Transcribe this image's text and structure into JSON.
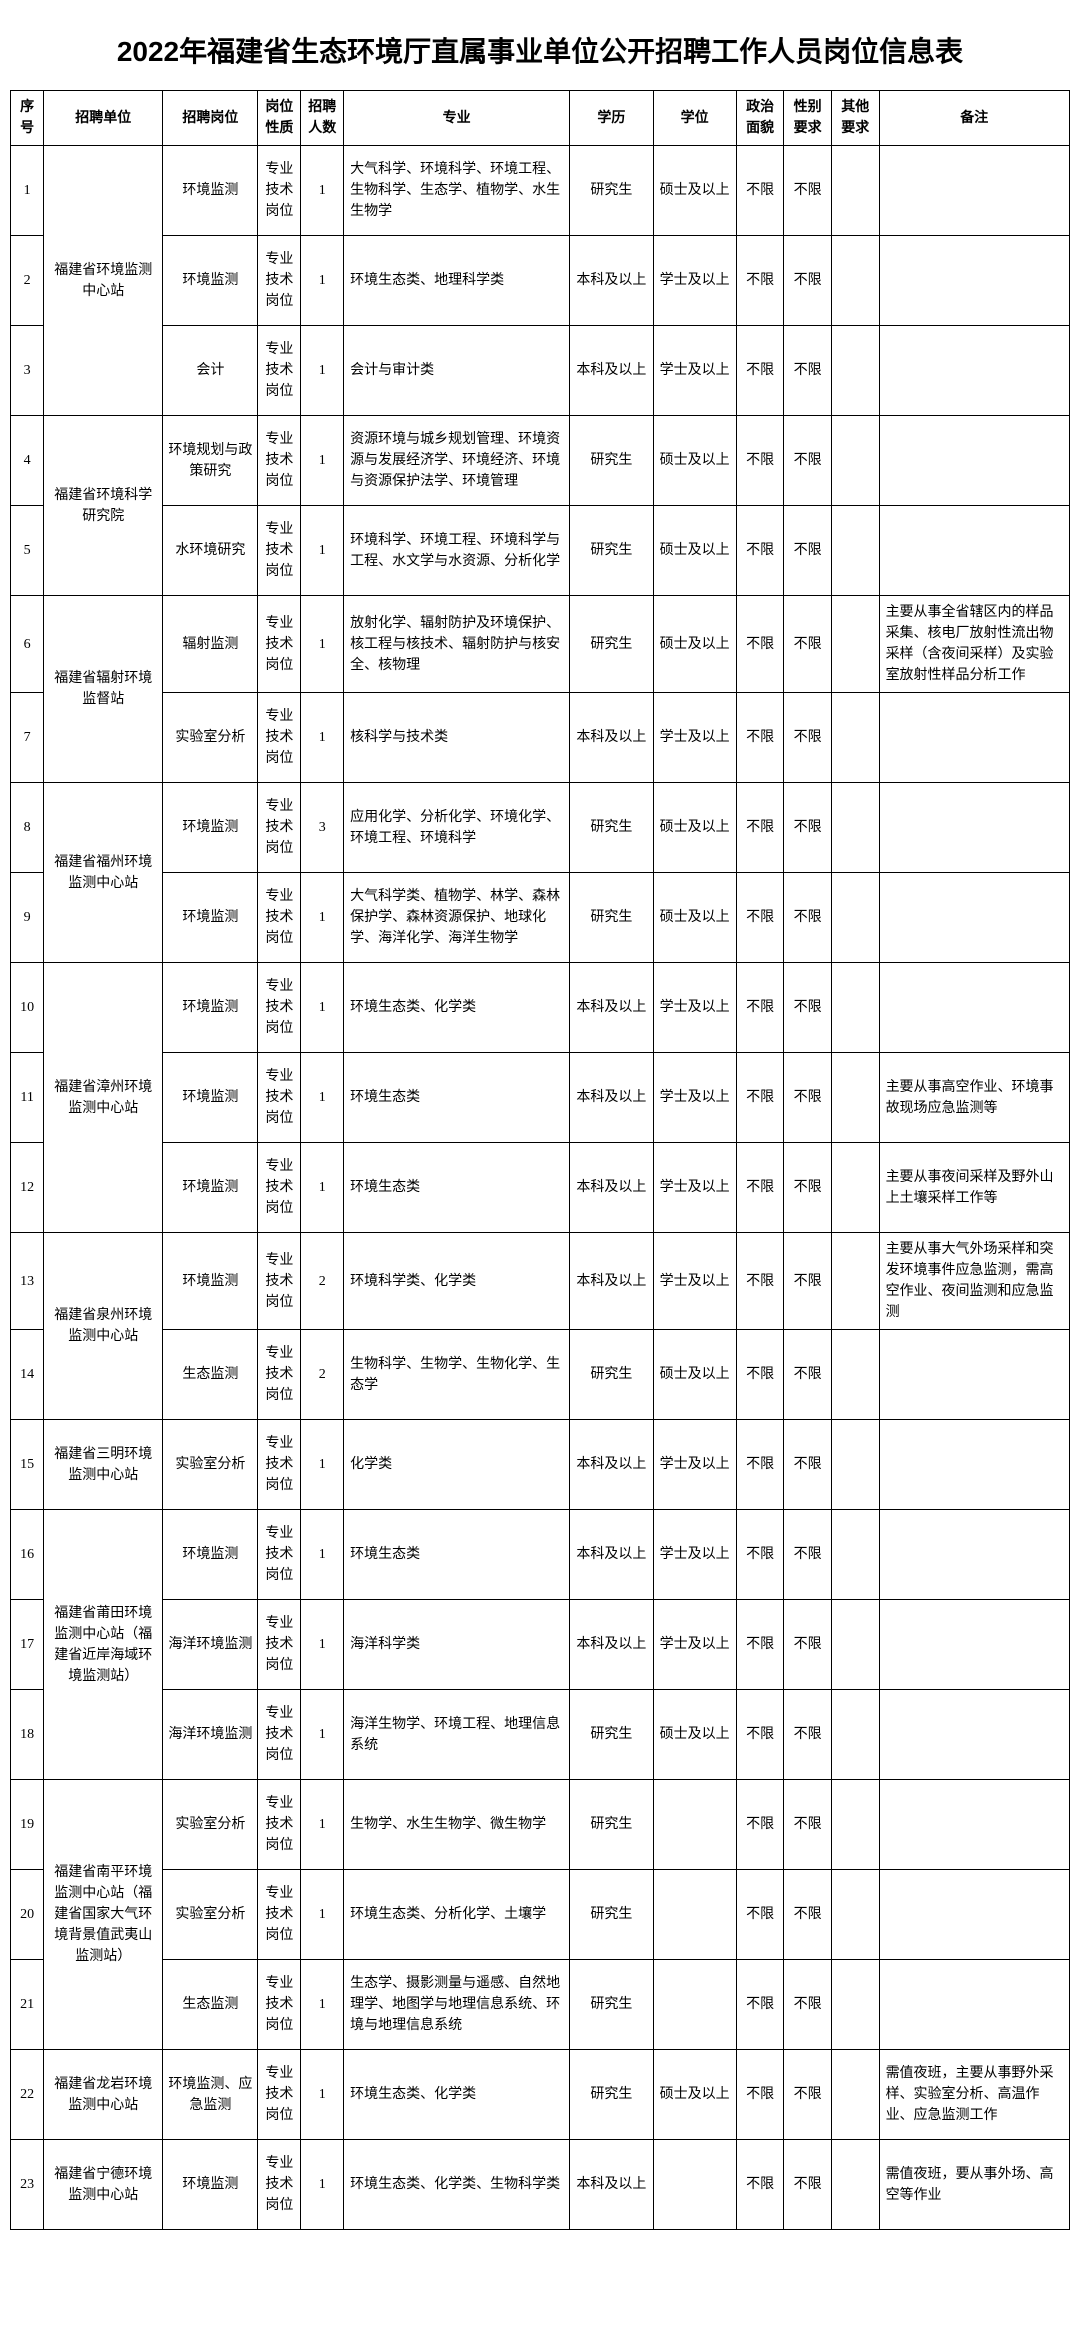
{
  "title": "2022年福建省生态环境厅直属事业单位公开招聘工作人员岗位信息表",
  "columns": [
    "序号",
    "招聘单位",
    "招聘岗位",
    "岗位性质",
    "招聘人数",
    "专业",
    "学历",
    "学位",
    "政治面貌",
    "性别要求",
    "其他要求",
    "备注"
  ],
  "rows": [
    {
      "seq": "1",
      "unit": "福建省环境监测中心站",
      "unit_rowspan": 3,
      "post": "环境监测",
      "nature": "专业技术岗位",
      "count": "1",
      "major": "大气科学、环境科学、环境工程、生物科学、生态学、植物学、水生生物学",
      "edu": "研究生",
      "degree": "硕士及以上",
      "pol": "不限",
      "gender": "不限",
      "other": "",
      "remark": ""
    },
    {
      "seq": "2",
      "post": "环境监测",
      "nature": "专业技术岗位",
      "count": "1",
      "major": "环境生态类、地理科学类",
      "edu": "本科及以上",
      "degree": "学士及以上",
      "pol": "不限",
      "gender": "不限",
      "other": "",
      "remark": ""
    },
    {
      "seq": "3",
      "post": "会计",
      "nature": "专业技术岗位",
      "count": "1",
      "major": "会计与审计类",
      "edu": "本科及以上",
      "degree": "学士及以上",
      "pol": "不限",
      "gender": "不限",
      "other": "",
      "remark": ""
    },
    {
      "seq": "4",
      "unit": "福建省环境科学研究院",
      "unit_rowspan": 2,
      "post": "环境规划与政策研究",
      "nature": "专业技术岗位",
      "count": "1",
      "major": "资源环境与城乡规划管理、环境资源与发展经济学、环境经济、环境与资源保护法学、环境管理",
      "edu": "研究生",
      "degree": "硕士及以上",
      "pol": "不限",
      "gender": "不限",
      "other": "",
      "remark": ""
    },
    {
      "seq": "5",
      "post": "水环境研究",
      "nature": "专业技术岗位",
      "count": "1",
      "major": "环境科学、环境工程、环境科学与工程、水文学与水资源、分析化学",
      "edu": "研究生",
      "degree": "硕士及以上",
      "pol": "不限",
      "gender": "不限",
      "other": "",
      "remark": ""
    },
    {
      "seq": "6",
      "unit": "福建省辐射环境监督站",
      "unit_rowspan": 2,
      "post": "辐射监测",
      "nature": "专业技术岗位",
      "count": "1",
      "major": "放射化学、辐射防护及环境保护、核工程与核技术、辐射防护与核安全、核物理",
      "edu": "研究生",
      "degree": "硕士及以上",
      "pol": "不限",
      "gender": "不限",
      "other": "",
      "remark": "主要从事全省辖区内的样品采集、核电厂放射性流出物采样（含夜间采样）及实验室放射性样品分析工作"
    },
    {
      "seq": "7",
      "post": "实验室分析",
      "nature": "专业技术岗位",
      "count": "1",
      "major": "核科学与技术类",
      "edu": "本科及以上",
      "degree": "学士及以上",
      "pol": "不限",
      "gender": "不限",
      "other": "",
      "remark": ""
    },
    {
      "seq": "8",
      "unit": "福建省福州环境监测中心站",
      "unit_rowspan": 2,
      "post": "环境监测",
      "nature": "专业技术岗位",
      "count": "3",
      "major": "应用化学、分析化学、环境化学、环境工程、环境科学",
      "edu": "研究生",
      "degree": "硕士及以上",
      "pol": "不限",
      "gender": "不限",
      "other": "",
      "remark": ""
    },
    {
      "seq": "9",
      "post": "环境监测",
      "nature": "专业技术岗位",
      "count": "1",
      "major": "大气科学类、植物学、林学、森林保护学、森林资源保护、地球化学、海洋化学、海洋生物学",
      "edu": "研究生",
      "degree": "硕士及以上",
      "pol": "不限",
      "gender": "不限",
      "other": "",
      "remark": ""
    },
    {
      "seq": "10",
      "unit": "福建省漳州环境监测中心站",
      "unit_rowspan": 3,
      "post": "环境监测",
      "nature": "专业技术岗位",
      "count": "1",
      "major": "环境生态类、化学类",
      "edu": "本科及以上",
      "degree": "学士及以上",
      "pol": "不限",
      "gender": "不限",
      "other": "",
      "remark": ""
    },
    {
      "seq": "11",
      "post": "环境监测",
      "nature": "专业技术岗位",
      "count": "1",
      "major": "环境生态类",
      "edu": "本科及以上",
      "degree": "学士及以上",
      "pol": "不限",
      "gender": "不限",
      "other": "",
      "remark": "主要从事高空作业、环境事故现场应急监测等"
    },
    {
      "seq": "12",
      "post": "环境监测",
      "nature": "专业技术岗位",
      "count": "1",
      "major": "环境生态类",
      "edu": "本科及以上",
      "degree": "学士及以上",
      "pol": "不限",
      "gender": "不限",
      "other": "",
      "remark": "主要从事夜间采样及野外山上土壤采样工作等"
    },
    {
      "seq": "13",
      "unit": "福建省泉州环境监测中心站",
      "unit_rowspan": 2,
      "post": "环境监测",
      "nature": "专业技术岗位",
      "count": "2",
      "major": "环境科学类、化学类",
      "edu": "本科及以上",
      "degree": "学士及以上",
      "pol": "不限",
      "gender": "不限",
      "other": "",
      "remark": "主要从事大气外场采样和突发环境事件应急监测，需高空作业、夜间监测和应急监测"
    },
    {
      "seq": "14",
      "post": "生态监测",
      "nature": "专业技术岗位",
      "count": "2",
      "major": "生物科学、生物学、生物化学、生态学",
      "edu": "研究生",
      "degree": "硕士及以上",
      "pol": "不限",
      "gender": "不限",
      "other": "",
      "remark": ""
    },
    {
      "seq": "15",
      "unit": "福建省三明环境监测中心站",
      "unit_rowspan": 1,
      "post": "实验室分析",
      "nature": "专业技术岗位",
      "count": "1",
      "major": "化学类",
      "edu": "本科及以上",
      "degree": "学士及以上",
      "pol": "不限",
      "gender": "不限",
      "other": "",
      "remark": ""
    },
    {
      "seq": "16",
      "unit": "福建省莆田环境监测中心站（福建省近岸海域环境监测站）",
      "unit_rowspan": 3,
      "post": "环境监测",
      "nature": "专业技术岗位",
      "count": "1",
      "major": "环境生态类",
      "edu": "本科及以上",
      "degree": "学士及以上",
      "pol": "不限",
      "gender": "不限",
      "other": "",
      "remark": ""
    },
    {
      "seq": "17",
      "post": "海洋环境监测",
      "nature": "专业技术岗位",
      "count": "1",
      "major": "海洋科学类",
      "edu": "本科及以上",
      "degree": "学士及以上",
      "pol": "不限",
      "gender": "不限",
      "other": "",
      "remark": ""
    },
    {
      "seq": "18",
      "post": "海洋环境监测",
      "nature": "专业技术岗位",
      "count": "1",
      "major": "海洋生物学、环境工程、地理信息系统",
      "edu": "研究生",
      "degree": "硕士及以上",
      "pol": "不限",
      "gender": "不限",
      "other": "",
      "remark": ""
    },
    {
      "seq": "19",
      "unit": "福建省南平环境监测中心站（福建省国家大气环境背景值武夷山监测站）",
      "unit_rowspan": 3,
      "post": "实验室分析",
      "nature": "专业技术岗位",
      "count": "1",
      "major": "生物学、水生生物学、微生物学",
      "edu": "研究生",
      "degree": "",
      "pol": "不限",
      "gender": "不限",
      "other": "",
      "remark": ""
    },
    {
      "seq": "20",
      "post": "实验室分析",
      "nature": "专业技术岗位",
      "count": "1",
      "major": "环境生态类、分析化学、土壤学",
      "edu": "研究生",
      "degree": "",
      "pol": "不限",
      "gender": "不限",
      "other": "",
      "remark": ""
    },
    {
      "seq": "21",
      "post": "生态监测",
      "nature": "专业技术岗位",
      "count": "1",
      "major": "生态学、摄影测量与遥感、自然地理学、地图学与地理信息系统、环境与地理信息系统",
      "edu": "研究生",
      "degree": "",
      "pol": "不限",
      "gender": "不限",
      "other": "",
      "remark": ""
    },
    {
      "seq": "22",
      "unit": "福建省龙岩环境监测中心站",
      "unit_rowspan": 1,
      "post": "环境监测、应急监测",
      "nature": "专业技术岗位",
      "count": "1",
      "major": "环境生态类、化学类",
      "edu": "研究生",
      "degree": "硕士及以上",
      "pol": "不限",
      "gender": "不限",
      "other": "",
      "remark": "需值夜班，主要从事野外采样、实验室分析、高温作业、应急监测工作"
    },
    {
      "seq": "23",
      "unit": "福建省宁德环境监测中心站",
      "unit_rowspan": 1,
      "post": "环境监测",
      "nature": "专业技术岗位",
      "count": "1",
      "major": "环境生态类、化学类、生物科学类",
      "edu": "本科及以上",
      "degree": "",
      "pol": "不限",
      "gender": "不限",
      "other": "",
      "remark": "需值夜班，要从事外场、高空等作业"
    }
  ]
}
